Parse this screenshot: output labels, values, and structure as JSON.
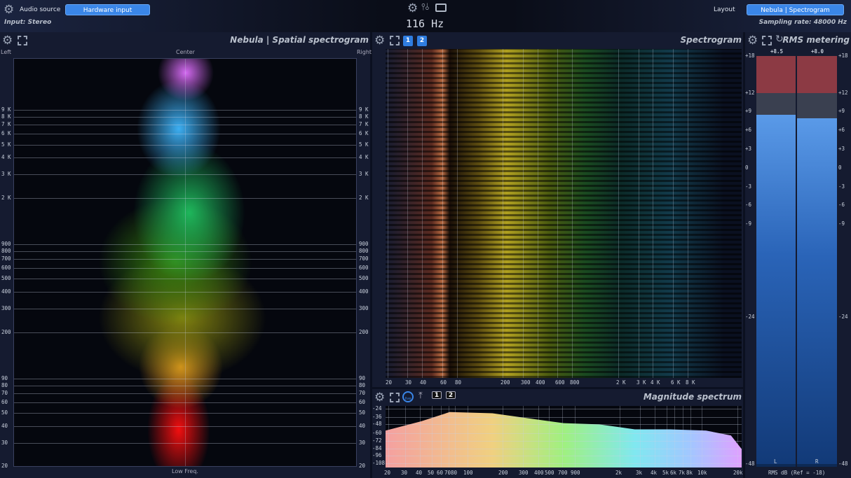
{
  "topbar": {
    "audio_source_label": "Audio source",
    "audio_source_value": "Hardware input",
    "input_label": "Input: Stereo",
    "frequency_readout": "116 Hz",
    "layout_label": "Layout",
    "layout_value": "Nebula | Spectrogram",
    "sampling_rate": "Sampling rate: 48000 Hz"
  },
  "nebula": {
    "title": "Nebula | Spatial spectrogram",
    "left": "Left",
    "center": "Center",
    "right": "Right",
    "bottom": "Low Freq.",
    "freq_labels": [
      "9 K",
      "8 K",
      "7 K",
      "6 K",
      "5 K",
      "4 K",
      "3 K",
      "2 K",
      "900",
      "800",
      "700",
      "600",
      "500",
      "400",
      "300",
      "200",
      "90",
      "80",
      "70",
      "60",
      "50",
      "40",
      "30",
      "20"
    ]
  },
  "spectrogram": {
    "title": "Spectrogram",
    "buttons": [
      "1",
      "2"
    ],
    "freq_labels": [
      "20",
      "30",
      "40",
      "60",
      "80",
      "200",
      "300",
      "400",
      "600",
      "800",
      "2 K",
      "3 K",
      "4 K",
      "6 K",
      "8 K"
    ]
  },
  "magnitude": {
    "title": "Magnitude spectrum",
    "live_label": "live",
    "buttons": [
      "1",
      "2"
    ],
    "db_labels": [
      "-24",
      "-36",
      "-48",
      "-60",
      "-72",
      "-84",
      "-96",
      "-108"
    ],
    "freq_labels": [
      "20",
      "30",
      "40",
      "50",
      "60",
      "70",
      "80",
      "100",
      "200",
      "300",
      "400",
      "500",
      "700",
      "900",
      "2k",
      "3k",
      "4k",
      "5k",
      "6k",
      "7k",
      "8k",
      "10k",
      "20k"
    ]
  },
  "rms": {
    "title": "RMS metering",
    "left_value": "+8.5",
    "right_value": "+8.0",
    "left_level_db": 8.5,
    "right_level_db": 8.0,
    "scale": [
      "+18",
      "+12",
      "+9",
      "+6",
      "+3",
      "0",
      "-3",
      "-6",
      "-9",
      "-24",
      "-48"
    ],
    "channel_left": "L",
    "channel_right": "R",
    "footer": "RMS dB (Ref = -18)"
  },
  "colors": {
    "accent": "#3a86e8",
    "meter_fill": "#3f7fd0",
    "meter_over": "#8c3a44"
  }
}
